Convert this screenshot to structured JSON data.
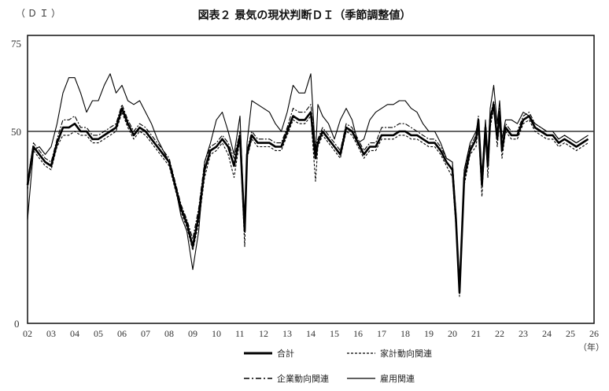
{
  "header": {
    "unit_label": "（ＤＩ）",
    "title": "図表２ 景気の現状判断ＤＩ（季節調整値）"
  },
  "axes": {
    "y_ticks": [
      "75",
      "50",
      "0"
    ],
    "x_ticks": [
      "02",
      "03",
      "04",
      "05",
      "06",
      "07",
      "08",
      "09",
      "10",
      "11",
      "12",
      "13",
      "14",
      "15",
      "16",
      "17",
      "18",
      "19",
      "20",
      "21",
      "22",
      "23",
      "24",
      "25",
      "26"
    ],
    "x_unit": "（年）"
  },
  "legend": {
    "total": "合計",
    "household": "家計動向関連",
    "corporate": "企業動向関連",
    "employment": "雇用関連"
  },
  "chart_data": {
    "type": "line",
    "title": "図表２ 景気の現状判断ＤＩ（季節調整値）",
    "xlabel": "（年）",
    "ylabel": "（ＤＩ）",
    "ylim": [
      0,
      75
    ],
    "xlim": [
      2002,
      2026
    ],
    "reference_line": 50,
    "grid": false,
    "legend_position": "bottom",
    "x": [
      2002.0,
      2002.25,
      2002.5,
      2002.75,
      2003.0,
      2003.25,
      2003.5,
      2003.75,
      2004.0,
      2004.25,
      2004.5,
      2004.75,
      2005.0,
      2005.25,
      2005.5,
      2005.75,
      2006.0,
      2006.25,
      2006.5,
      2006.75,
      2007.0,
      2007.25,
      2007.5,
      2007.75,
      2008.0,
      2008.25,
      2008.5,
      2008.75,
      2009.0,
      2009.25,
      2009.5,
      2009.75,
      2010.0,
      2010.25,
      2010.5,
      2010.75,
      2011.0,
      2011.2,
      2011.3,
      2011.5,
      2011.75,
      2012.0,
      2012.25,
      2012.5,
      2012.75,
      2013.0,
      2013.25,
      2013.5,
      2013.75,
      2014.0,
      2014.2,
      2014.3,
      2014.5,
      2014.75,
      2015.0,
      2015.25,
      2015.5,
      2015.75,
      2016.0,
      2016.25,
      2016.5,
      2016.75,
      2017.0,
      2017.25,
      2017.5,
      2017.75,
      2018.0,
      2018.25,
      2018.5,
      2018.75,
      2019.0,
      2019.25,
      2019.5,
      2019.75,
      2020.0,
      2020.15,
      2020.3,
      2020.5,
      2020.75,
      2021.0,
      2021.1,
      2021.25,
      2021.4,
      2021.5,
      2021.6,
      2021.75,
      2021.9,
      2022.0,
      2022.1,
      2022.25,
      2022.5,
      2022.75,
      2023.0,
      2023.25,
      2023.5,
      2023.75,
      2024.0,
      2024.25,
      2024.5,
      2024.75,
      2025.0,
      2025.25,
      2025.5,
      2025.75
    ],
    "series": [
      {
        "name": "合計",
        "style": "thick-solid",
        "values": [
          36,
          46,
          44,
          42,
          41,
          47,
          51,
          51,
          52,
          50,
          50,
          48,
          48,
          49,
          50,
          51,
          56,
          52,
          49,
          51,
          50,
          48,
          46,
          44,
          42,
          36,
          30,
          26,
          20,
          28,
          40,
          45,
          46,
          48,
          46,
          41,
          49,
          24,
          44,
          49,
          47,
          47,
          47,
          46,
          46,
          50,
          54,
          53,
          53,
          55,
          43,
          47,
          50,
          48,
          46,
          44,
          51,
          50,
          47,
          44,
          46,
          46,
          49,
          49,
          49,
          50,
          50,
          49,
          49,
          48,
          47,
          47,
          45,
          42,
          40,
          27,
          8,
          38,
          45,
          48,
          53,
          36,
          51,
          41,
          53,
          57,
          48,
          55,
          45,
          51,
          49,
          49,
          53,
          54,
          51,
          50,
          49,
          49,
          47,
          48,
          47,
          46,
          47,
          48
        ]
      },
      {
        "name": "家計動向関連",
        "style": "dashed",
        "values": [
          35,
          45,
          43,
          41,
          40,
          46,
          49,
          49,
          50,
          49,
          49,
          47,
          47,
          48,
          49,
          50,
          55,
          51,
          48,
          50,
          49,
          47,
          45,
          43,
          41,
          35,
          29,
          25,
          19,
          26,
          38,
          44,
          45,
          47,
          44,
          38,
          48,
          20,
          43,
          48,
          46,
          46,
          46,
          45,
          45,
          49,
          53,
          52,
          52,
          54,
          37,
          46,
          49,
          47,
          45,
          43,
          50,
          49,
          46,
          43,
          45,
          45,
          48,
          48,
          48,
          49,
          49,
          48,
          48,
          47,
          46,
          46,
          44,
          41,
          38,
          25,
          7,
          36,
          44,
          46,
          51,
          33,
          50,
          38,
          51,
          56,
          46,
          53,
          43,
          50,
          48,
          48,
          52,
          53,
          50,
          49,
          48,
          48,
          46,
          47,
          46,
          45,
          46,
          47
        ]
      },
      {
        "name": "企業動向関連",
        "style": "dash-dot",
        "values": [
          37,
          47,
          45,
          43,
          42,
          48,
          53,
          53,
          54,
          51,
          51,
          49,
          49,
          50,
          51,
          52,
          57,
          53,
          50,
          52,
          51,
          49,
          47,
          45,
          43,
          37,
          31,
          27,
          22,
          30,
          42,
          46,
          47,
          49,
          47,
          43,
          50,
          26,
          45,
          50,
          48,
          48,
          48,
          47,
          47,
          51,
          56,
          55,
          55,
          57,
          46,
          48,
          51,
          49,
          47,
          45,
          52,
          51,
          48,
          45,
          47,
          47,
          51,
          51,
          51,
          52,
          52,
          51,
          50,
          49,
          48,
          48,
          46,
          43,
          42,
          29,
          9,
          40,
          46,
          49,
          54,
          38,
          52,
          42,
          54,
          58,
          49,
          56,
          46,
          52,
          50,
          50,
          54,
          55,
          52,
          51,
          50,
          50,
          48,
          49,
          48,
          47,
          48,
          49
        ]
      },
      {
        "name": "雇用関連",
        "style": "thin-solid",
        "values": [
          27,
          45,
          46,
          44,
          46,
          52,
          60,
          64,
          64,
          60,
          55,
          58,
          58,
          62,
          65,
          60,
          62,
          58,
          57,
          58,
          55,
          52,
          48,
          45,
          42,
          36,
          28,
          24,
          14,
          24,
          42,
          47,
          53,
          55,
          50,
          44,
          54,
          24,
          47,
          58,
          57,
          56,
          55,
          52,
          50,
          55,
          62,
          60,
          60,
          65,
          44,
          57,
          54,
          52,
          48,
          53,
          56,
          53,
          47,
          48,
          53,
          55,
          56,
          57,
          57,
          58,
          58,
          56,
          55,
          52,
          50,
          50,
          47,
          43,
          42,
          28,
          8,
          40,
          47,
          50,
          53,
          38,
          53,
          43,
          56,
          62,
          52,
          58,
          48,
          53,
          53,
          52,
          55,
          54,
          52,
          51,
          50,
          50,
          48,
          49,
          48,
          47,
          48,
          49
        ]
      }
    ]
  }
}
